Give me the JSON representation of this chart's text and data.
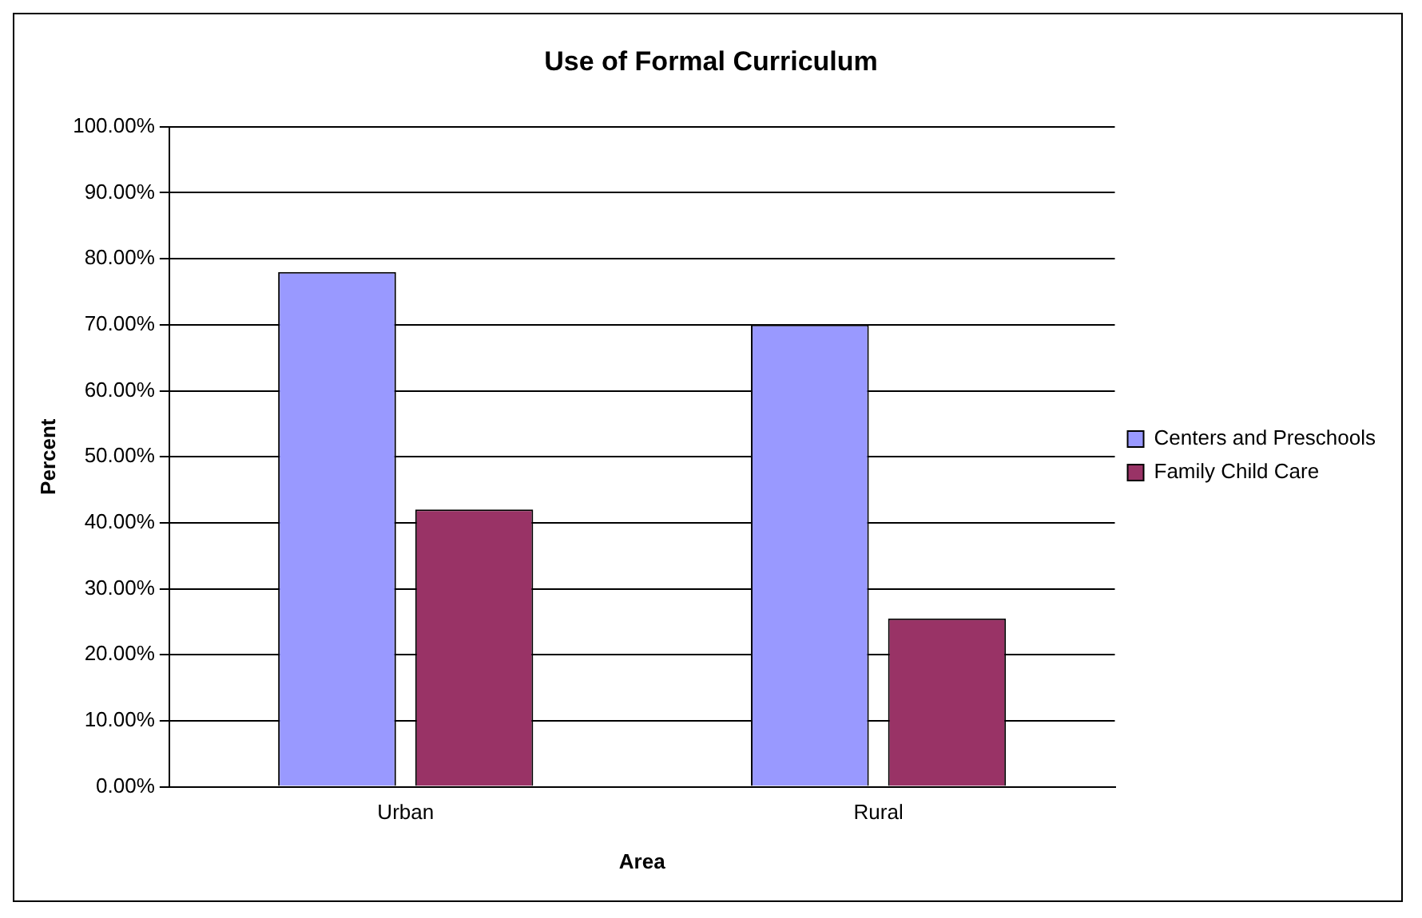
{
  "chart_data": {
    "type": "bar",
    "title": "Use of Formal Curriculum",
    "xlabel": "Area",
    "ylabel": "Percent",
    "categories": [
      "Urban",
      "Rural"
    ],
    "series": [
      {
        "name": "Centers and Preschools",
        "color": "#9999ff",
        "values": [
          78,
          70
        ]
      },
      {
        "name": "Family Child Care",
        "color": "#993366",
        "values": [
          42,
          25.5
        ]
      }
    ],
    "ylim": [
      0,
      100
    ],
    "yticks": [
      {
        "value": 0,
        "label": "0.00%"
      },
      {
        "value": 10,
        "label": "10.00%"
      },
      {
        "value": 20,
        "label": "20.00%"
      },
      {
        "value": 30,
        "label": "30.00%"
      },
      {
        "value": 40,
        "label": "40.00%"
      },
      {
        "value": 50,
        "label": "50.00%"
      },
      {
        "value": 60,
        "label": "60.00%"
      },
      {
        "value": 70,
        "label": "70.00%"
      },
      {
        "value": 80,
        "label": "80.00%"
      },
      {
        "value": 90,
        "label": "90.00%"
      },
      {
        "value": 100,
        "label": "100.00%"
      }
    ],
    "grid": "y",
    "legend": "right"
  }
}
